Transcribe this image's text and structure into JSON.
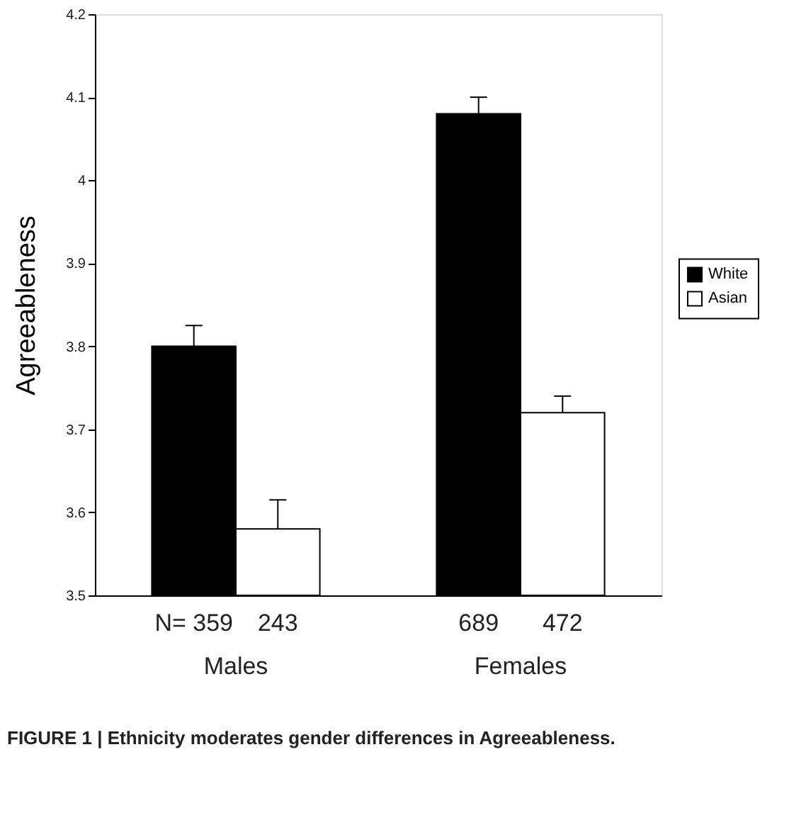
{
  "chart_data": {
    "type": "bar",
    "ylabel": "Agreeableness",
    "categories": [
      "Males",
      "Females"
    ],
    "series": [
      {
        "name": "White",
        "color": "#000000",
        "values": [
          3.8,
          4.08
        ],
        "errors": [
          [
            3.8,
            3.825
          ],
          [
            4.08,
            4.1
          ]
        ]
      },
      {
        "name": "Asian",
        "color": "#ffffff",
        "values": [
          3.58,
          3.72
        ],
        "errors": [
          [
            3.58,
            3.615
          ],
          [
            3.72,
            3.74
          ]
        ]
      }
    ],
    "ylim": [
      3.5,
      4.2
    ],
    "yticks": [
      3.5,
      3.6,
      3.7,
      3.8,
      3.9,
      4,
      4.1,
      4.2
    ],
    "grid": false,
    "legend": "right",
    "annotations": [
      "N= 359",
      "243",
      "689",
      "472",
      "FIGURE 1 | Ethnicity moderates gender differences in Agreeableness."
    ]
  }
}
